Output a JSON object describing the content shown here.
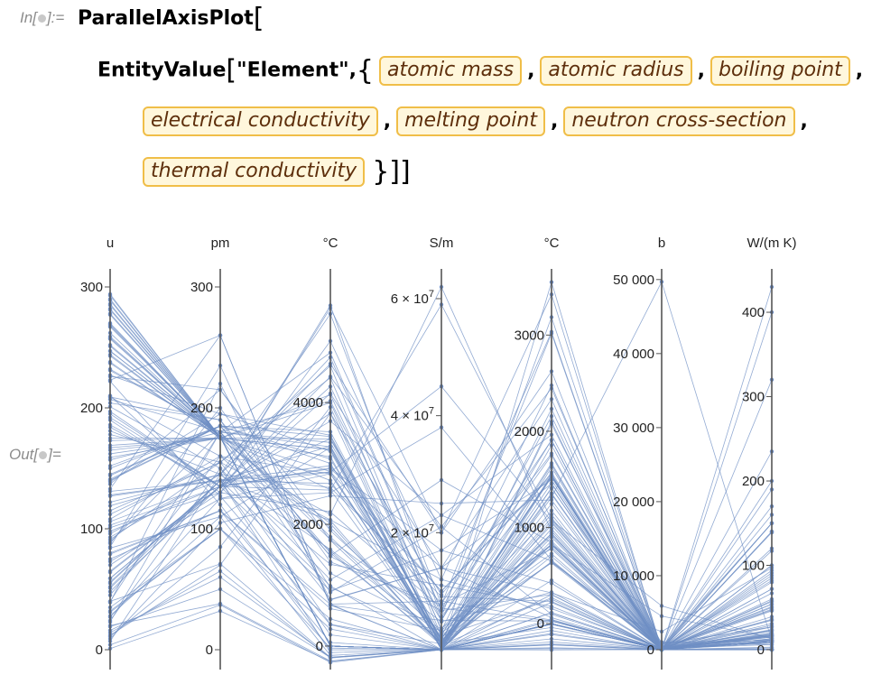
{
  "input_label": "In[",
  "input_label_end": "]:=",
  "output_label": "Out[",
  "output_label_end": "]=",
  "code": {
    "function": "ParallelAxisPlot",
    "inner_function": "EntityValue",
    "entity_type": "\"Element\",",
    "properties": [
      "atomic mass",
      "atomic radius",
      "boiling point",
      "electrical conductivity",
      "melting point",
      "neutron cross-section",
      "thermal conductivity"
    ],
    "separator": ",",
    "closing": "}]]"
  },
  "colors": {
    "line": "#6f8fc4",
    "axis": "#555555",
    "entity_border": "#f0be48",
    "entity_bg": "#fff7dc",
    "entity_text": "#5e2f0c"
  },
  "chart_data": {
    "type": "parallel-axis",
    "axes": [
      {
        "unit": "u",
        "ticks": [
          {
            "label": "0",
            "value": 0
          },
          {
            "label": "100",
            "value": 100
          },
          {
            "label": "200",
            "value": 200
          },
          {
            "label": "300",
            "value": 300
          }
        ],
        "range": [
          0,
          300
        ]
      },
      {
        "unit": "pm",
        "ticks": [
          {
            "label": "0",
            "value": 0
          },
          {
            "label": "100",
            "value": 100
          },
          {
            "label": "200",
            "value": 200
          },
          {
            "label": "300",
            "value": 300
          }
        ],
        "range": [
          0,
          300
        ]
      },
      {
        "unit": "°C",
        "ticks": [
          {
            "label": "0",
            "value": 0
          },
          {
            "label": "2000",
            "value": 2000
          },
          {
            "label": "4000",
            "value": 4000
          }
        ],
        "range": [
          -60,
          5900
        ]
      },
      {
        "unit": "S/m",
        "ticks": [
          {
            "label": "2 × 10",
            "sup": "7",
            "value": 20000000
          },
          {
            "label": "4 × 10",
            "sup": "7",
            "value": 40000000
          },
          {
            "label": "6 × 10",
            "sup": "7",
            "value": 60000000
          }
        ],
        "range": [
          0,
          62000000
        ]
      },
      {
        "unit": "°C",
        "ticks": [
          {
            "label": "0",
            "value": 0
          },
          {
            "label": "1000",
            "value": 1000
          },
          {
            "label": "2000",
            "value": 2000
          },
          {
            "label": "3000",
            "value": 3000
          }
        ],
        "range": [
          -270,
          3500
        ]
      },
      {
        "unit": "b",
        "ticks": [
          {
            "label": "0",
            "value": 0
          },
          {
            "label": "10 000",
            "value": 10000
          },
          {
            "label": "20 000",
            "value": 20000
          },
          {
            "label": "30 000",
            "value": 30000
          },
          {
            "label": "40 000",
            "value": 40000
          },
          {
            "label": "50 000",
            "value": 50000
          }
        ],
        "range": [
          0,
          49000
        ]
      },
      {
        "unit": "W/(m K)",
        "ticks": [
          {
            "label": "0",
            "value": 0
          },
          {
            "label": "100",
            "value": 100
          },
          {
            "label": "200",
            "value": 200
          },
          {
            "label": "300",
            "value": 300
          },
          {
            "label": "400",
            "value": 400
          }
        ],
        "range": [
          0,
          430
        ]
      }
    ],
    "series": [
      [
        1,
        32,
        -253,
        0,
        -259,
        0.3,
        0.18
      ],
      [
        4,
        37,
        -269,
        0,
        -272,
        0.01,
        0.15
      ],
      [
        7,
        145,
        1342,
        11000000,
        180,
        71,
        85
      ],
      [
        9,
        105,
        2470,
        25000000,
        1287,
        0.01,
        190
      ],
      [
        11,
        85,
        3927,
        10,
        2075,
        767,
        27
      ],
      [
        12,
        70,
        3825,
        60000,
        3550,
        0.004,
        140
      ],
      [
        14,
        65,
        -196,
        0,
        -210,
        1.9,
        0.03
      ],
      [
        16,
        60,
        -183,
        0,
        -218,
        0.0002,
        0.03
      ],
      [
        19,
        50,
        -188,
        0,
        -220,
        0.01,
        0.03
      ],
      [
        20,
        38,
        -246,
        0,
        -249,
        0.04,
        0.05
      ],
      [
        23,
        180,
        883,
        21000000,
        98,
        0.53,
        140
      ],
      [
        24,
        150,
        1090,
        23000000,
        650,
        0.063,
        160
      ],
      [
        27,
        125,
        2519,
        38000000,
        660,
        0.23,
        235
      ],
      [
        28,
        110,
        3265,
        1000,
        1414,
        0.17,
        150
      ],
      [
        31,
        100,
        280,
        10,
        44,
        0.2,
        0.24
      ],
      [
        32,
        100,
        445,
        1,
        115,
        0.53,
        0.2
      ],
      [
        35,
        100,
        -34,
        0,
        -101,
        33,
        0.01
      ],
      [
        40,
        71,
        -186,
        0,
        -189,
        0.68,
        0.02
      ],
      [
        39,
        220,
        759,
        14000000,
        63,
        2.1,
        100
      ],
      [
        40,
        180,
        1484,
        29000000,
        842,
        0.43,
        200
      ],
      [
        45,
        160,
        2830,
        1800000,
        1541,
        27,
        16
      ],
      [
        48,
        140,
        3287,
        2500000,
        1668,
        6.1,
        22
      ],
      [
        51,
        135,
        3407,
        5000000,
        1910,
        5,
        31
      ],
      [
        52,
        140,
        2671,
        7900000,
        1907,
        3.1,
        94
      ],
      [
        55,
        140,
        2061,
        620000,
        1246,
        13,
        8
      ],
      [
        56,
        140,
        2861,
        10000000,
        1538,
        2.6,
        80
      ],
      [
        59,
        135,
        2927,
        17000000,
        1495,
        37,
        100
      ],
      [
        59,
        135,
        2913,
        14000000,
        1455,
        4.5,
        91
      ],
      [
        64,
        135,
        2562,
        59000000,
        1085,
        3.8,
        400
      ],
      [
        65,
        135,
        907,
        17000000,
        420,
        1.1,
        120
      ],
      [
        70,
        130,
        2204,
        7100000,
        30,
        2.9,
        29
      ],
      [
        73,
        125,
        2833,
        2000000,
        938,
        2.3,
        60
      ],
      [
        75,
        115,
        614,
        3300000,
        817,
        4.5,
        50
      ],
      [
        79,
        115,
        685,
        1,
        221,
        12,
        0.52
      ],
      [
        80,
        115,
        59,
        0,
        -7,
        6.9,
        0.12
      ],
      [
        84,
        110,
        -153,
        0,
        -157,
        25,
        0.01
      ],
      [
        85,
        235,
        688,
        8300000,
        39,
        0.38,
        58
      ],
      [
        88,
        200,
        1382,
        7700000,
        777,
        1.3,
        35
      ],
      [
        89,
        180,
        3345,
        1800000,
        1526,
        1.3,
        17
      ],
      [
        91,
        155,
        4409,
        2400000,
        1855,
        0.19,
        23
      ],
      [
        93,
        145,
        4744,
        6700000,
        2477,
        1.1,
        54
      ],
      [
        96,
        145,
        4639,
        20000000,
        2623,
        2.5,
        139
      ],
      [
        98,
        135,
        4265,
        5000000,
        2157,
        20,
        51
      ],
      [
        101,
        130,
        4150,
        14000000,
        2334,
        2.6,
        117
      ],
      [
        103,
        135,
        3695,
        23000000,
        1964,
        145,
        150
      ],
      [
        106,
        140,
        2963,
        10000000,
        1555,
        6.9,
        72
      ],
      [
        108,
        160,
        2162,
        62000000,
        962,
        63,
        430
      ],
      [
        112,
        155,
        767,
        14000000,
        321,
        2450,
        97
      ],
      [
        115,
        155,
        2072,
        12000000,
        157,
        194,
        82
      ],
      [
        119,
        145,
        2602,
        9100000,
        232,
        0.63,
        67
      ],
      [
        122,
        145,
        1587,
        2500000,
        631,
        5.4,
        24
      ],
      [
        128,
        140,
        988,
        10000,
        450,
        4.7,
        3
      ],
      [
        127,
        140,
        184,
        0,
        114,
        6.2,
        0.45
      ],
      [
        131,
        140,
        -108,
        0,
        -112,
        24,
        0.01
      ],
      [
        133,
        260,
        671,
        5000000,
        28,
        29,
        36
      ],
      [
        137,
        215,
        1897,
        2900000,
        727,
        1.1,
        18
      ],
      [
        139,
        195,
        3464,
        1600000,
        920,
        9,
        13
      ],
      [
        140,
        185,
        3443,
        1400000,
        795,
        0.63,
        11
      ],
      [
        141,
        185,
        3520,
        1400000,
        935,
        11.5,
        13
      ],
      [
        144,
        185,
        3074,
        1600000,
        1024,
        51,
        17
      ],
      [
        145,
        185,
        3000,
        1300000,
        1100,
        168,
        18
      ],
      [
        150,
        185,
        1794,
        1100000,
        1072,
        5922,
        13
      ],
      [
        152,
        185,
        1529,
        1100000,
        822,
        4530,
        14
      ],
      [
        157,
        180,
        3273,
        770000,
        1312,
        49700,
        11
      ],
      [
        159,
        175,
        3230,
        830000,
        1356,
        23,
        11
      ],
      [
        162,
        175,
        2567,
        1100000,
        1407,
        994,
        11
      ],
      [
        165,
        175,
        2720,
        1100000,
        1461,
        64,
        16
      ],
      [
        167,
        175,
        2868,
        1200000,
        1529,
        159,
        15
      ],
      [
        169,
        175,
        1950,
        1100000,
        1545,
        100,
        17
      ],
      [
        173,
        175,
        1196,
        3600000,
        824,
        34.8,
        39
      ],
      [
        175,
        175,
        3402,
        1800000,
        1652,
        74,
        16
      ],
      [
        178,
        155,
        4603,
        3300000,
        2233,
        104,
        23
      ],
      [
        181,
        145,
        5458,
        7700000,
        3017,
        20.6,
        57
      ],
      [
        184,
        135,
        5555,
        20000000,
        3422,
        18.3,
        170
      ],
      [
        186,
        135,
        5596,
        5600000,
        3186,
        89.7,
        48
      ],
      [
        190,
        130,
        5012,
        12000000,
        3033,
        16,
        88
      ],
      [
        192,
        135,
        4428,
        21000000,
        2446,
        425,
        150
      ],
      [
        195,
        135,
        3825,
        9400000,
        1768,
        10.3,
        72
      ],
      [
        197,
        135,
        2856,
        45000000,
        1064,
        98.7,
        320
      ],
      [
        201,
        150,
        357,
        1000000,
        -39,
        375,
        8.3
      ],
      [
        204,
        190,
        1473,
        6700000,
        304,
        3.43,
        46
      ],
      [
        207,
        180,
        1749,
        4800000,
        327,
        0.17,
        35
      ],
      [
        209,
        160,
        1564,
        770000,
        271,
        0.034,
        8
      ],
      [
        209,
        190,
        962,
        2300000,
        254,
        0,
        20
      ],
      [
        210,
        127,
        350,
        0,
        302,
        0,
        2
      ],
      [
        222,
        120,
        -62,
        0,
        -71,
        0.7,
        0.0036
      ],
      [
        223,
        260,
        677,
        0,
        27,
        0,
        15
      ],
      [
        226,
        215,
        1737,
        1000000,
        700,
        12.8,
        19
      ],
      [
        227,
        195,
        3200,
        0,
        1050,
        515,
        12
      ],
      [
        232,
        180,
        4820,
        6700000,
        1750,
        7.37,
        54
      ],
      [
        231,
        180,
        4027,
        5600000,
        1572,
        200,
        47
      ],
      [
        238,
        175,
        4131,
        3600000,
        1135,
        7.57,
        27
      ],
      [
        237,
        175,
        4000,
        830000,
        644,
        175,
        6
      ],
      [
        244,
        175,
        3228,
        670000,
        640,
        1017,
        6
      ],
      [
        243,
        175,
        2011,
        690000,
        1176,
        75,
        10
      ],
      [
        247,
        176,
        3110,
        0,
        1345,
        0,
        10
      ],
      [
        247,
        176,
        0,
        0,
        986,
        0,
        10
      ],
      [
        251,
        176,
        0,
        0,
        900,
        0,
        10
      ],
      [
        252,
        176,
        0,
        0,
        860,
        0,
        10
      ],
      [
        257,
        176,
        0,
        0,
        1527,
        0,
        10
      ],
      [
        258,
        176,
        0,
        0,
        827,
        0,
        10
      ],
      [
        259,
        176,
        0,
        0,
        827,
        0,
        10
      ],
      [
        262,
        176,
        0,
        0,
        1627,
        0,
        10
      ],
      [
        267,
        176,
        0,
        0,
        2100,
        0,
        10
      ],
      [
        268,
        176,
        0,
        0,
        0,
        0,
        0
      ],
      [
        269,
        176,
        0,
        0,
        0,
        0,
        0
      ],
      [
        270,
        176,
        0,
        0,
        0,
        0,
        0
      ],
      [
        277,
        176,
        0,
        0,
        0,
        0,
        0
      ],
      [
        278,
        176,
        0,
        0,
        0,
        0,
        0
      ],
      [
        281,
        176,
        0,
        0,
        0,
        0,
        0
      ],
      [
        282,
        176,
        0,
        0,
        0,
        0,
        0
      ],
      [
        285,
        176,
        0,
        0,
        0,
        0,
        0
      ],
      [
        286,
        176,
        0,
        0,
        0,
        0,
        0
      ],
      [
        289,
        176,
        0,
        0,
        0,
        0,
        0
      ],
      [
        290,
        176,
        0,
        0,
        0,
        0,
        0
      ],
      [
        293,
        176,
        0,
        0,
        0,
        0,
        0
      ],
      [
        294,
        176,
        0,
        0,
        0,
        0,
        0
      ]
    ]
  }
}
